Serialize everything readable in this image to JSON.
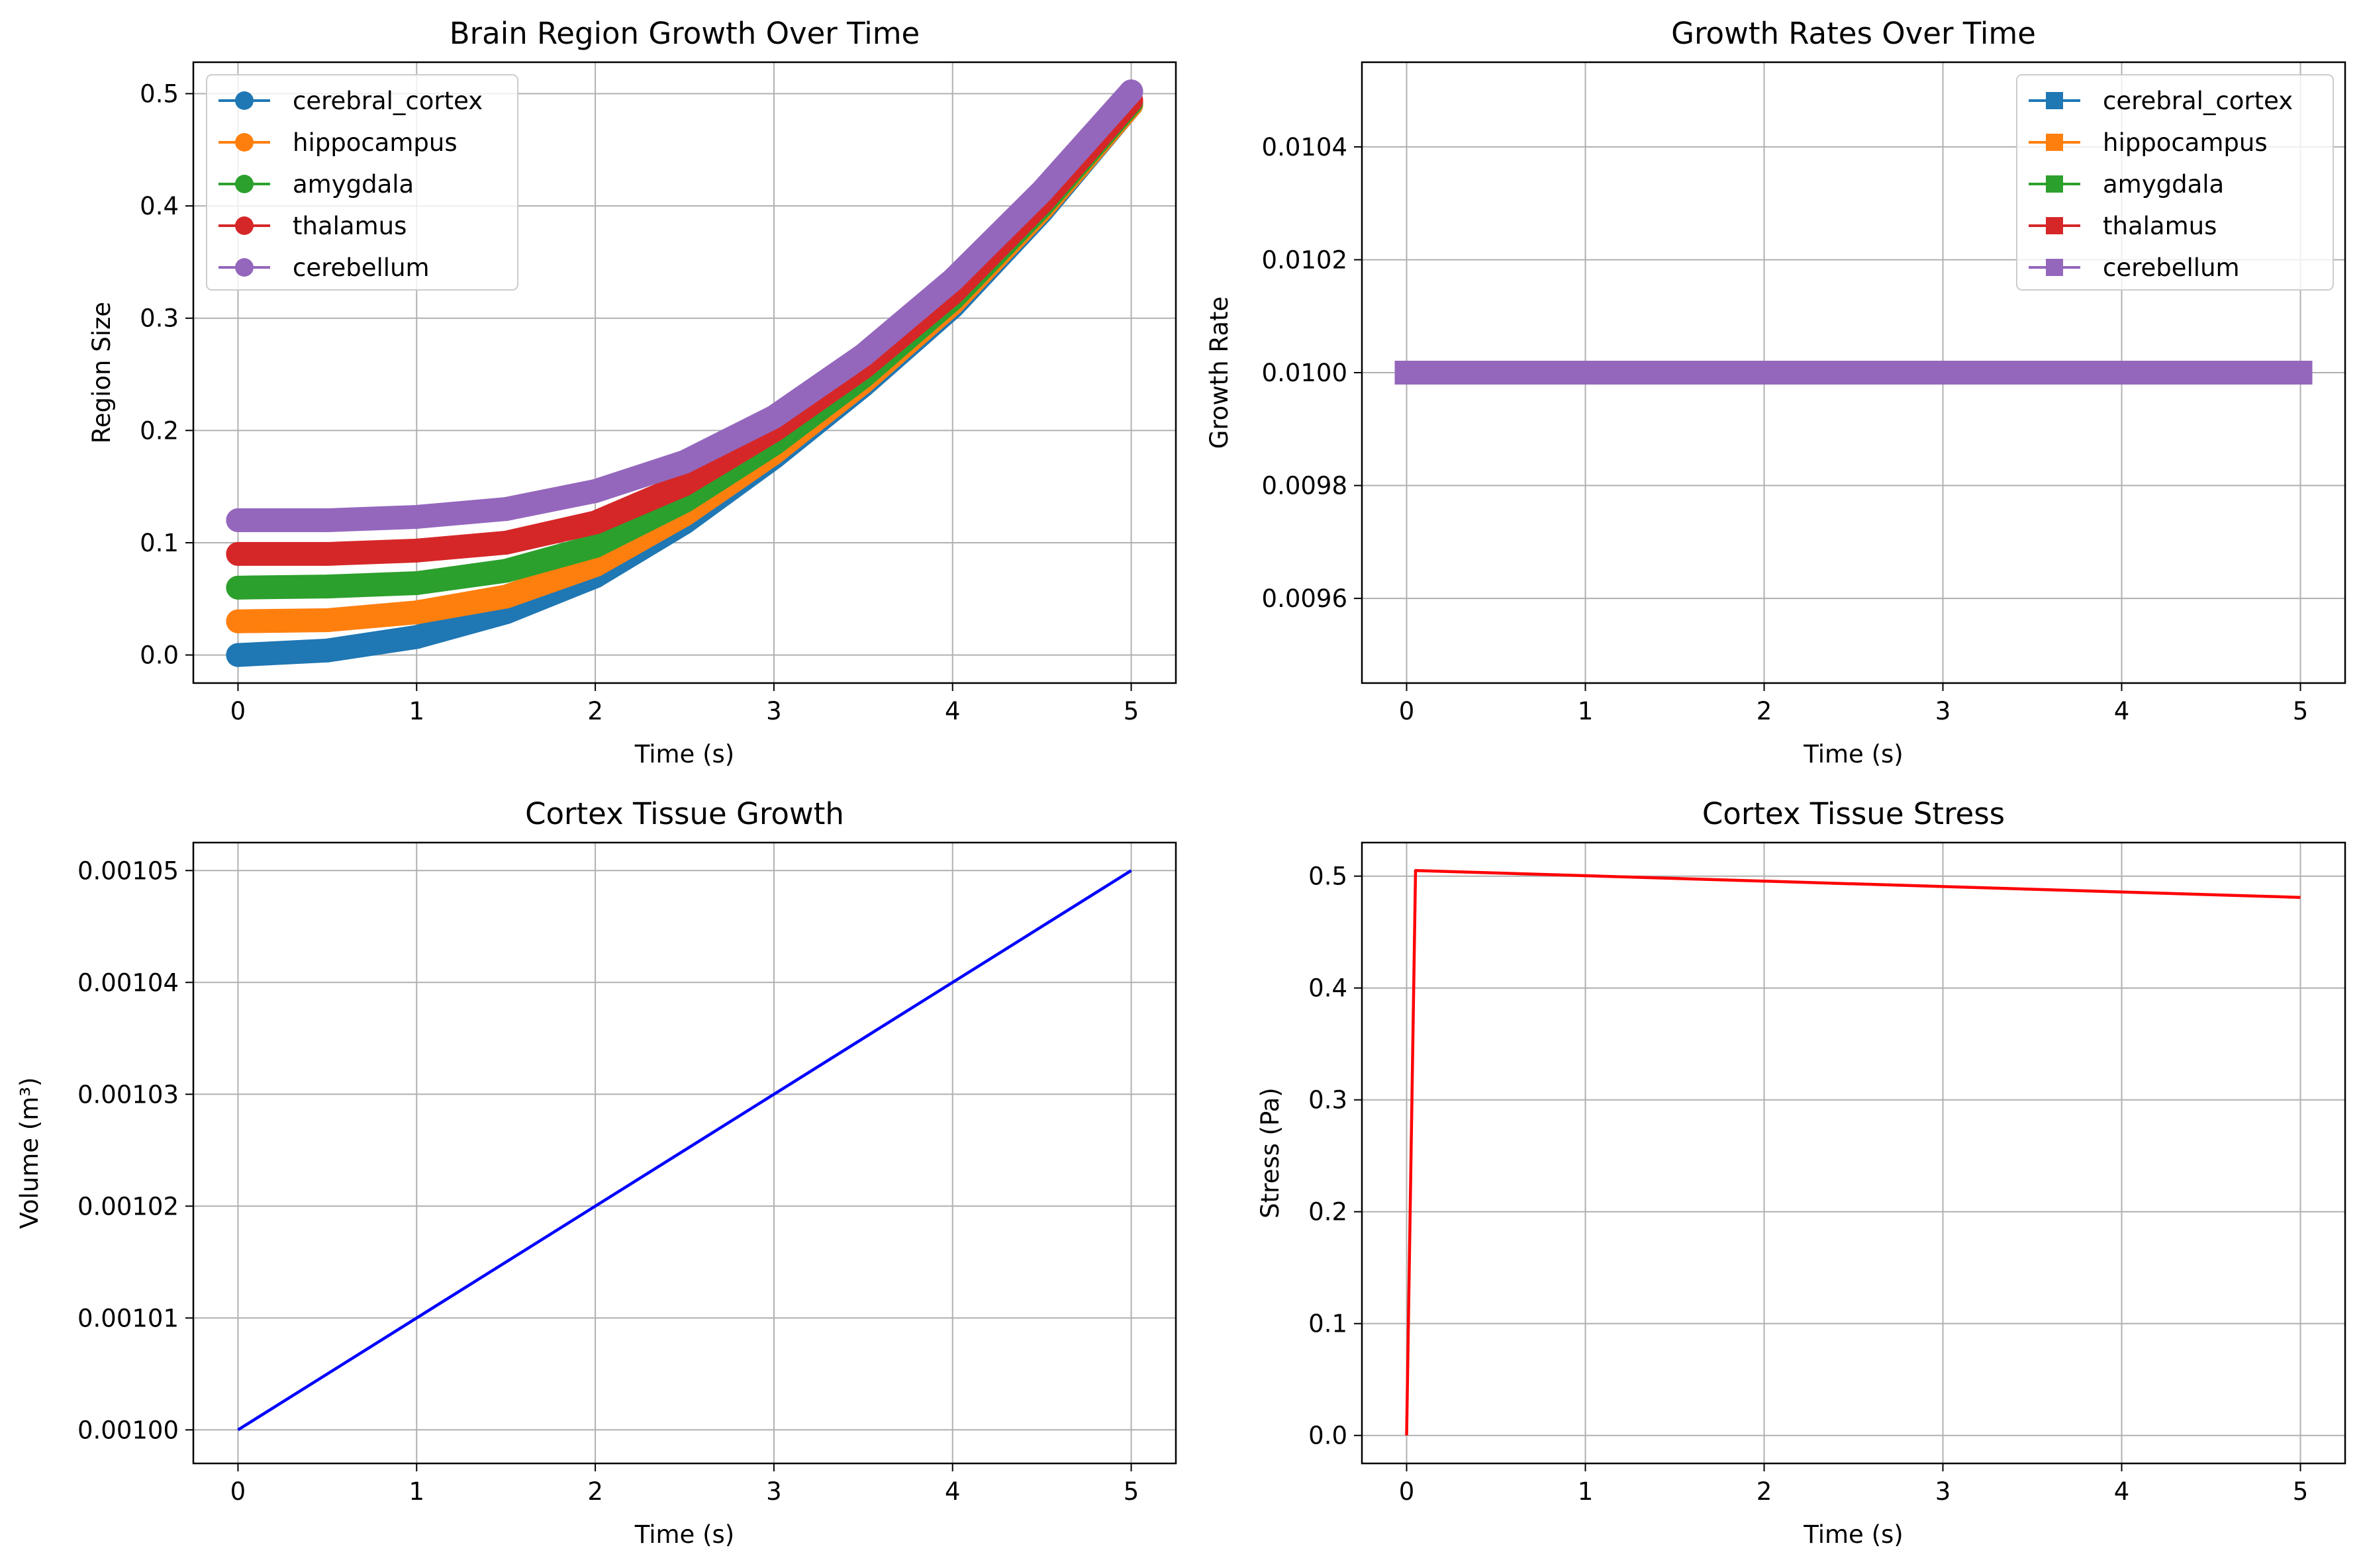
{
  "chart_data": [
    {
      "type": "line",
      "title": "Brain Region Growth Over Time",
      "xlabel": "Time (s)",
      "ylabel": "Region Size",
      "xlim": [
        -0.25,
        5.25
      ],
      "ylim": [
        -0.025,
        0.528
      ],
      "xticks": [
        0,
        1,
        2,
        3,
        4,
        5
      ],
      "xtick_labels": [
        "0",
        "1",
        "2",
        "3",
        "4",
        "5"
      ],
      "yticks": [
        0.0,
        0.1,
        0.2,
        0.3,
        0.4,
        0.5
      ],
      "ytick_labels": [
        "0.0",
        "0.1",
        "0.2",
        "0.3",
        "0.4",
        "0.5"
      ],
      "grid": true,
      "legend": "upper-left",
      "marker": "circle",
      "series": [
        {
          "name": "cerebral_cortex",
          "color": "#1f77b4",
          "x": [
            0,
            0.5,
            1,
            1.5,
            2,
            2.5,
            3,
            3.5,
            4,
            4.5,
            5
          ],
          "y": [
            0.0,
            0.004,
            0.016,
            0.038,
            0.07,
            0.118,
            0.176,
            0.24,
            0.31,
            0.395,
            0.49
          ]
        },
        {
          "name": "hippocampus",
          "color": "#ff7f0e",
          "x": [
            0,
            0.5,
            1,
            1.5,
            2,
            2.5,
            3,
            3.5,
            4,
            4.5,
            5
          ],
          "y": [
            0.03,
            0.031,
            0.038,
            0.052,
            0.08,
            0.125,
            0.18,
            0.243,
            0.313,
            0.397,
            0.49
          ]
        },
        {
          "name": "amygdala",
          "color": "#2ca02c",
          "x": [
            0,
            0.5,
            1,
            1.5,
            2,
            2.5,
            3,
            3.5,
            4,
            4.5,
            5
          ],
          "y": [
            0.06,
            0.061,
            0.064,
            0.075,
            0.097,
            0.137,
            0.188,
            0.248,
            0.317,
            0.4,
            0.492
          ]
        },
        {
          "name": "thalamus",
          "color": "#d62728",
          "x": [
            0,
            0.5,
            1,
            1.5,
            2,
            2.5,
            3,
            3.5,
            4,
            4.5,
            5
          ],
          "y": [
            0.09,
            0.09,
            0.093,
            0.1,
            0.118,
            0.152,
            0.2,
            0.256,
            0.322,
            0.403,
            0.494
          ]
        },
        {
          "name": "cerebellum",
          "color": "#9467bd",
          "x": [
            0,
            0.5,
            1,
            1.5,
            2,
            2.5,
            3,
            3.5,
            4,
            4.5,
            5
          ],
          "y": [
            0.12,
            0.12,
            0.123,
            0.13,
            0.146,
            0.172,
            0.212,
            0.267,
            0.334,
            0.413,
            0.502
          ]
        }
      ]
    },
    {
      "type": "line",
      "title": "Growth Rates Over Time",
      "xlabel": "Time (s)",
      "ylabel": "Growth Rate",
      "xlim": [
        -0.25,
        5.25
      ],
      "ylim": [
        0.00945,
        0.01055
      ],
      "xticks": [
        0,
        1,
        2,
        3,
        4,
        5
      ],
      "xtick_labels": [
        "0",
        "1",
        "2",
        "3",
        "4",
        "5"
      ],
      "yticks": [
        0.0096,
        0.0098,
        0.01,
        0.0102,
        0.0104
      ],
      "ytick_labels": [
        "0.0096",
        "0.0098",
        "0.0100",
        "0.0102",
        "0.0104"
      ],
      "grid": true,
      "legend": "upper-right",
      "marker": "square",
      "series": [
        {
          "name": "cerebral_cortex",
          "color": "#1f77b4",
          "x": [
            0,
            5
          ],
          "y": [
            0.01,
            0.01
          ]
        },
        {
          "name": "hippocampus",
          "color": "#ff7f0e",
          "x": [
            0,
            5
          ],
          "y": [
            0.01,
            0.01
          ]
        },
        {
          "name": "amygdala",
          "color": "#2ca02c",
          "x": [
            0,
            5
          ],
          "y": [
            0.01,
            0.01
          ]
        },
        {
          "name": "thalamus",
          "color": "#d62728",
          "x": [
            0,
            5
          ],
          "y": [
            0.01,
            0.01
          ]
        },
        {
          "name": "cerebellum",
          "color": "#9467bd",
          "x": [
            0,
            5
          ],
          "y": [
            0.01,
            0.01
          ]
        }
      ]
    },
    {
      "type": "line",
      "title": "Cortex Tissue Growth",
      "xlabel": "Time (s)",
      "ylabel": "Volume (m³)",
      "xlim": [
        -0.25,
        5.25
      ],
      "ylim": [
        0.000997,
        0.0010525
      ],
      "xticks": [
        0,
        1,
        2,
        3,
        4,
        5
      ],
      "xtick_labels": [
        "0",
        "1",
        "2",
        "3",
        "4",
        "5"
      ],
      "yticks": [
        0.001,
        0.00101,
        0.00102,
        0.00103,
        0.00104,
        0.00105
      ],
      "ytick_labels": [
        "0.00100",
        "0.00101",
        "0.00102",
        "0.00103",
        "0.00104",
        "0.00105"
      ],
      "grid": true,
      "series": [
        {
          "color": "#0000ff",
          "x": [
            0,
            5
          ],
          "y": [
            0.001,
            0.00105
          ]
        }
      ]
    },
    {
      "type": "line",
      "title": "Cortex Tissue Stress",
      "xlabel": "Time (s)",
      "ylabel": "Stress (Pa)",
      "xlim": [
        -0.25,
        5.25
      ],
      "ylim": [
        -0.025,
        0.53
      ],
      "xticks": [
        0,
        1,
        2,
        3,
        4,
        5
      ],
      "xtick_labels": [
        "0",
        "1",
        "2",
        "3",
        "4",
        "5"
      ],
      "yticks": [
        0.0,
        0.1,
        0.2,
        0.3,
        0.4,
        0.5
      ],
      "ytick_labels": [
        "0.0",
        "0.1",
        "0.2",
        "0.3",
        "0.4",
        "0.5"
      ],
      "grid": true,
      "series": [
        {
          "color": "#ff0000",
          "x": [
            0,
            0.05,
            5
          ],
          "y": [
            0.0,
            0.505,
            0.481
          ]
        }
      ]
    }
  ]
}
